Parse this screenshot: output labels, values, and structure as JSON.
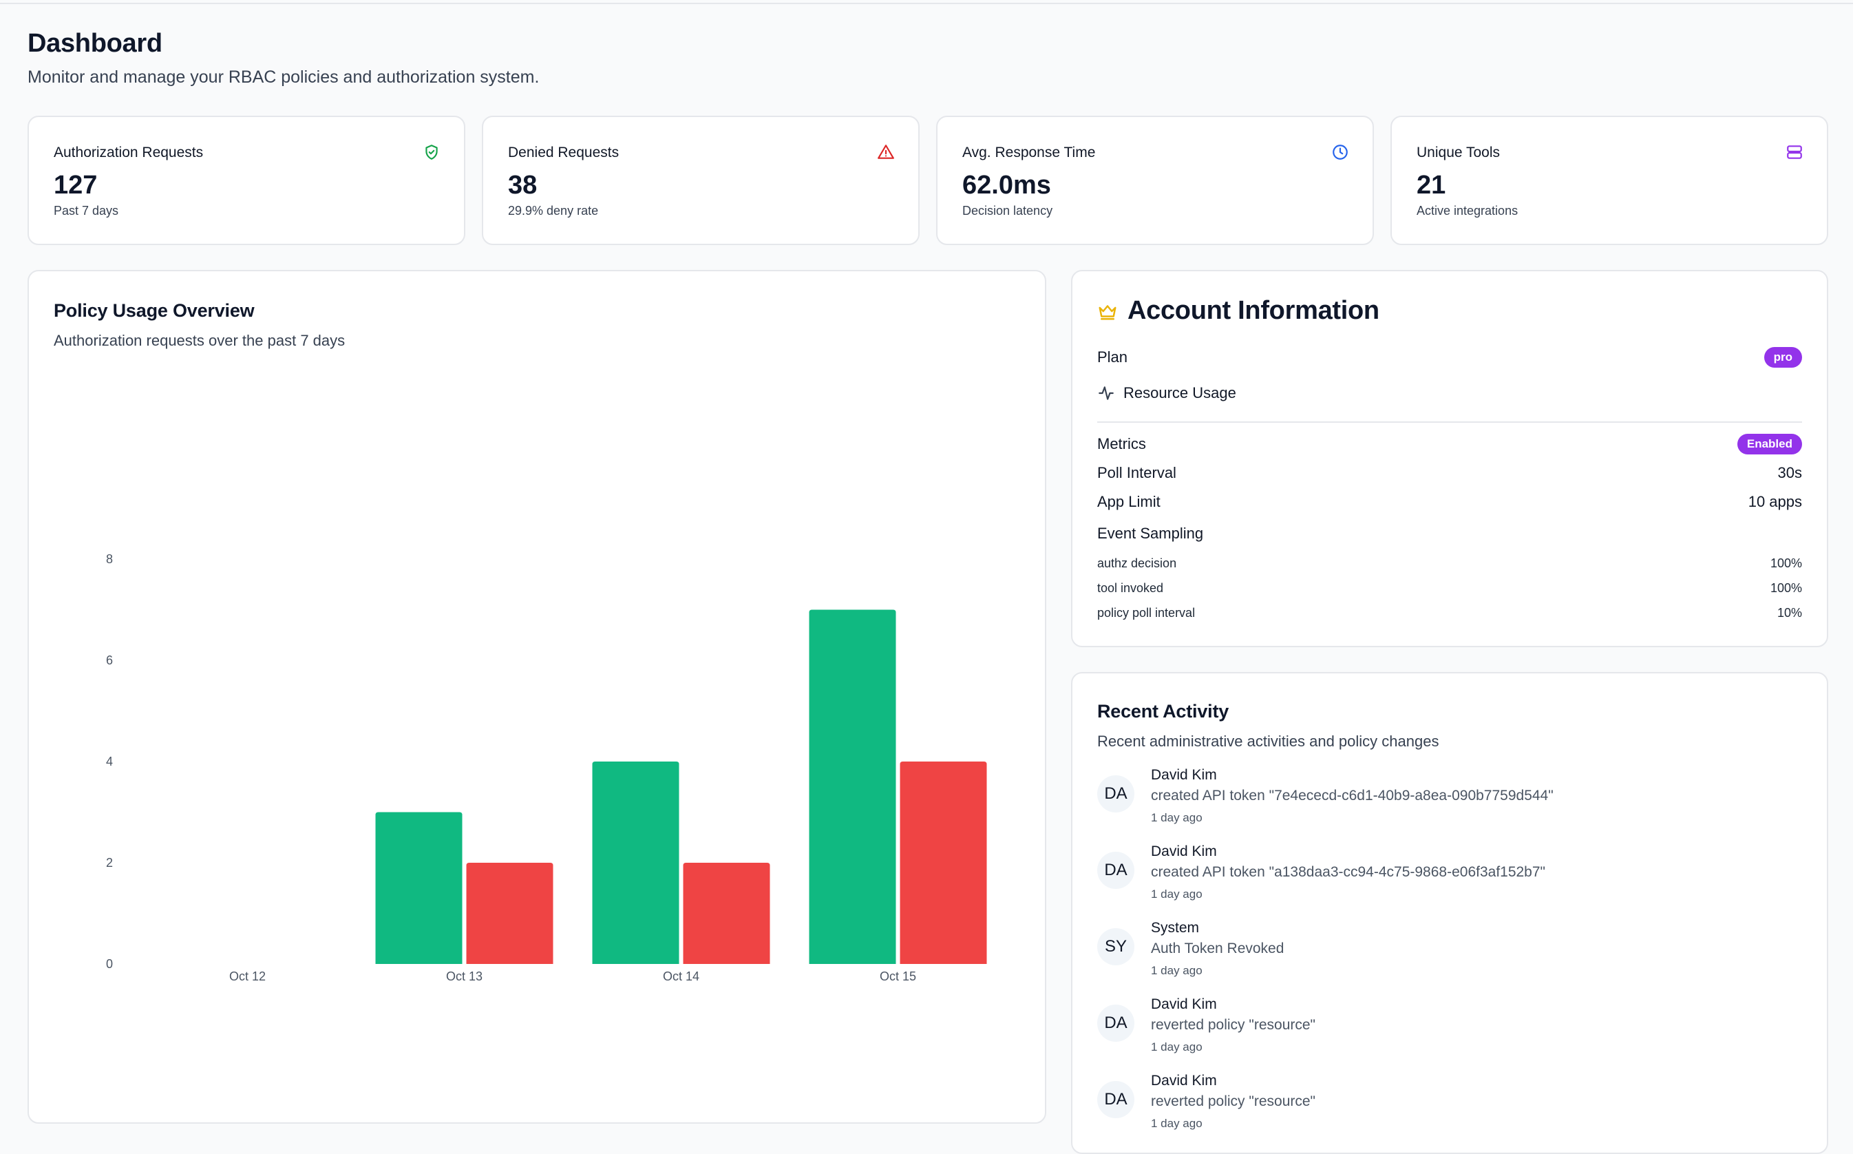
{
  "header": {
    "title": "Dashboard",
    "subtitle": "Monitor and manage your RBAC policies and authorization system."
  },
  "stats": [
    {
      "title": "Authorization Requests",
      "value": "127",
      "sub": "Past 7 days",
      "icon": "shield-check-icon",
      "color": "#16a34a"
    },
    {
      "title": "Denied Requests",
      "value": "38",
      "sub": "29.9% deny rate",
      "icon": "alert-triangle-icon",
      "color": "#dc2626"
    },
    {
      "title": "Avg. Response Time",
      "value": "62.0ms",
      "sub": "Decision latency",
      "icon": "clock-icon",
      "color": "#2563eb"
    },
    {
      "title": "Unique Tools",
      "value": "21",
      "sub": "Active integrations",
      "icon": "server-icon",
      "color": "#9333ea"
    }
  ],
  "policy_usage": {
    "title": "Policy Usage Overview",
    "subtitle": "Authorization requests over the past 7 days"
  },
  "chart_data": {
    "type": "bar",
    "categories": [
      "Oct 12",
      "Oct 13",
      "Oct 14",
      "Oct 15"
    ],
    "series": [
      {
        "values": [
          0,
          3,
          4,
          7
        ],
        "color": "#10b981"
      },
      {
        "values": [
          0,
          2,
          2,
          4
        ],
        "color": "#ef4444"
      }
    ],
    "yticks": [
      0,
      2,
      4,
      6,
      8
    ],
    "ylim": [
      0,
      8
    ],
    "grid": false,
    "title": "",
    "xlabel": "",
    "ylabel": ""
  },
  "account": {
    "title": "Account Information",
    "plan_label": "Plan",
    "plan_value": "pro",
    "resource_usage_label": "Resource Usage",
    "metrics_label": "Metrics",
    "metrics_value": "Enabled",
    "poll_label": "Poll Interval",
    "poll_value": "30s",
    "app_limit_label": "App Limit",
    "app_limit_value": "10 apps",
    "sampling_label": "Event Sampling",
    "sampling": [
      {
        "label": "authz decision",
        "value": "100%"
      },
      {
        "label": "tool invoked",
        "value": "100%"
      },
      {
        "label": "policy poll interval",
        "value": "10%"
      }
    ]
  },
  "activity": {
    "title": "Recent Activity",
    "subtitle": "Recent administrative activities and policy changes",
    "items": [
      {
        "initials": "DA",
        "name": "David Kim",
        "desc": "created API token \"7e4ececd-c6d1-40b9-a8ea-090b7759d544\"",
        "time": "1 day ago"
      },
      {
        "initials": "DA",
        "name": "David Kim",
        "desc": "created API token \"a138daa3-cc94-4c75-9868-e06f3af152b7\"",
        "time": "1 day ago"
      },
      {
        "initials": "SY",
        "name": "System",
        "desc": "Auth Token Revoked",
        "time": "1 day ago"
      },
      {
        "initials": "DA",
        "name": "David Kim",
        "desc": "reverted policy \"resource\"",
        "time": "1 day ago"
      },
      {
        "initials": "DA",
        "name": "David Kim",
        "desc": "reverted policy \"resource\"",
        "time": "1 day ago"
      }
    ]
  }
}
